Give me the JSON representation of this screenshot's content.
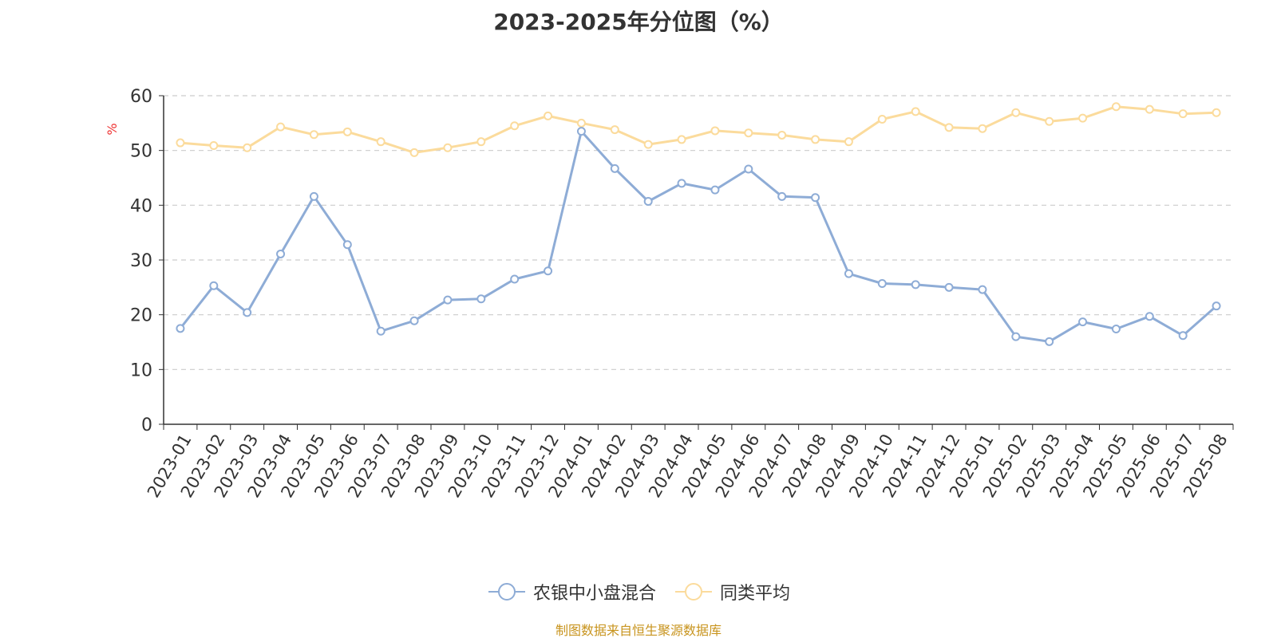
{
  "chart_data": {
    "type": "line",
    "title": "2023-2025年分位图（%）",
    "ylabel": "%",
    "xlabel": "",
    "ylim": [
      0,
      60
    ],
    "yticks": [
      0,
      10,
      20,
      30,
      40,
      50,
      60
    ],
    "grid": true,
    "legend_position": "bottom",
    "categories": [
      "2023-01",
      "2023-02",
      "2023-03",
      "2023-04",
      "2023-05",
      "2023-06",
      "2023-07",
      "2023-08",
      "2023-09",
      "2023-10",
      "2023-11",
      "2023-12",
      "2024-01",
      "2024-02",
      "2024-03",
      "2024-04",
      "2024-05",
      "2024-06",
      "2024-07",
      "2024-08",
      "2024-09",
      "2024-10",
      "2024-11",
      "2024-12",
      "2025-01",
      "2025-02",
      "2025-03",
      "2025-04",
      "2025-05",
      "2025-06",
      "2025-07",
      "2025-08"
    ],
    "series": [
      {
        "name": "农银中小盘混合",
        "color": "#8eacd6",
        "values": [
          17.5,
          25.3,
          20.4,
          31.1,
          41.6,
          32.8,
          17.0,
          18.9,
          22.7,
          22.9,
          26.5,
          28.0,
          53.5,
          46.7,
          40.7,
          44.0,
          42.8,
          46.6,
          41.6,
          41.4,
          27.5,
          25.7,
          25.5,
          25.0,
          24.6,
          16.0,
          15.1,
          18.7,
          17.4,
          19.7,
          16.2,
          21.6
        ]
      },
      {
        "name": "同类平均",
        "color": "#fbdb9c",
        "values": [
          51.4,
          50.9,
          50.5,
          54.3,
          52.9,
          53.4,
          51.6,
          49.6,
          50.5,
          51.6,
          54.5,
          56.3,
          55.0,
          53.8,
          51.1,
          52.0,
          53.6,
          53.2,
          52.8,
          52.0,
          51.6,
          55.7,
          57.1,
          54.2,
          54.0,
          56.9,
          55.3,
          55.9,
          58.0,
          57.5,
          56.7,
          56.9
        ]
      }
    ]
  },
  "footer": {
    "source": "制图数据来自恒生聚源数据库"
  }
}
